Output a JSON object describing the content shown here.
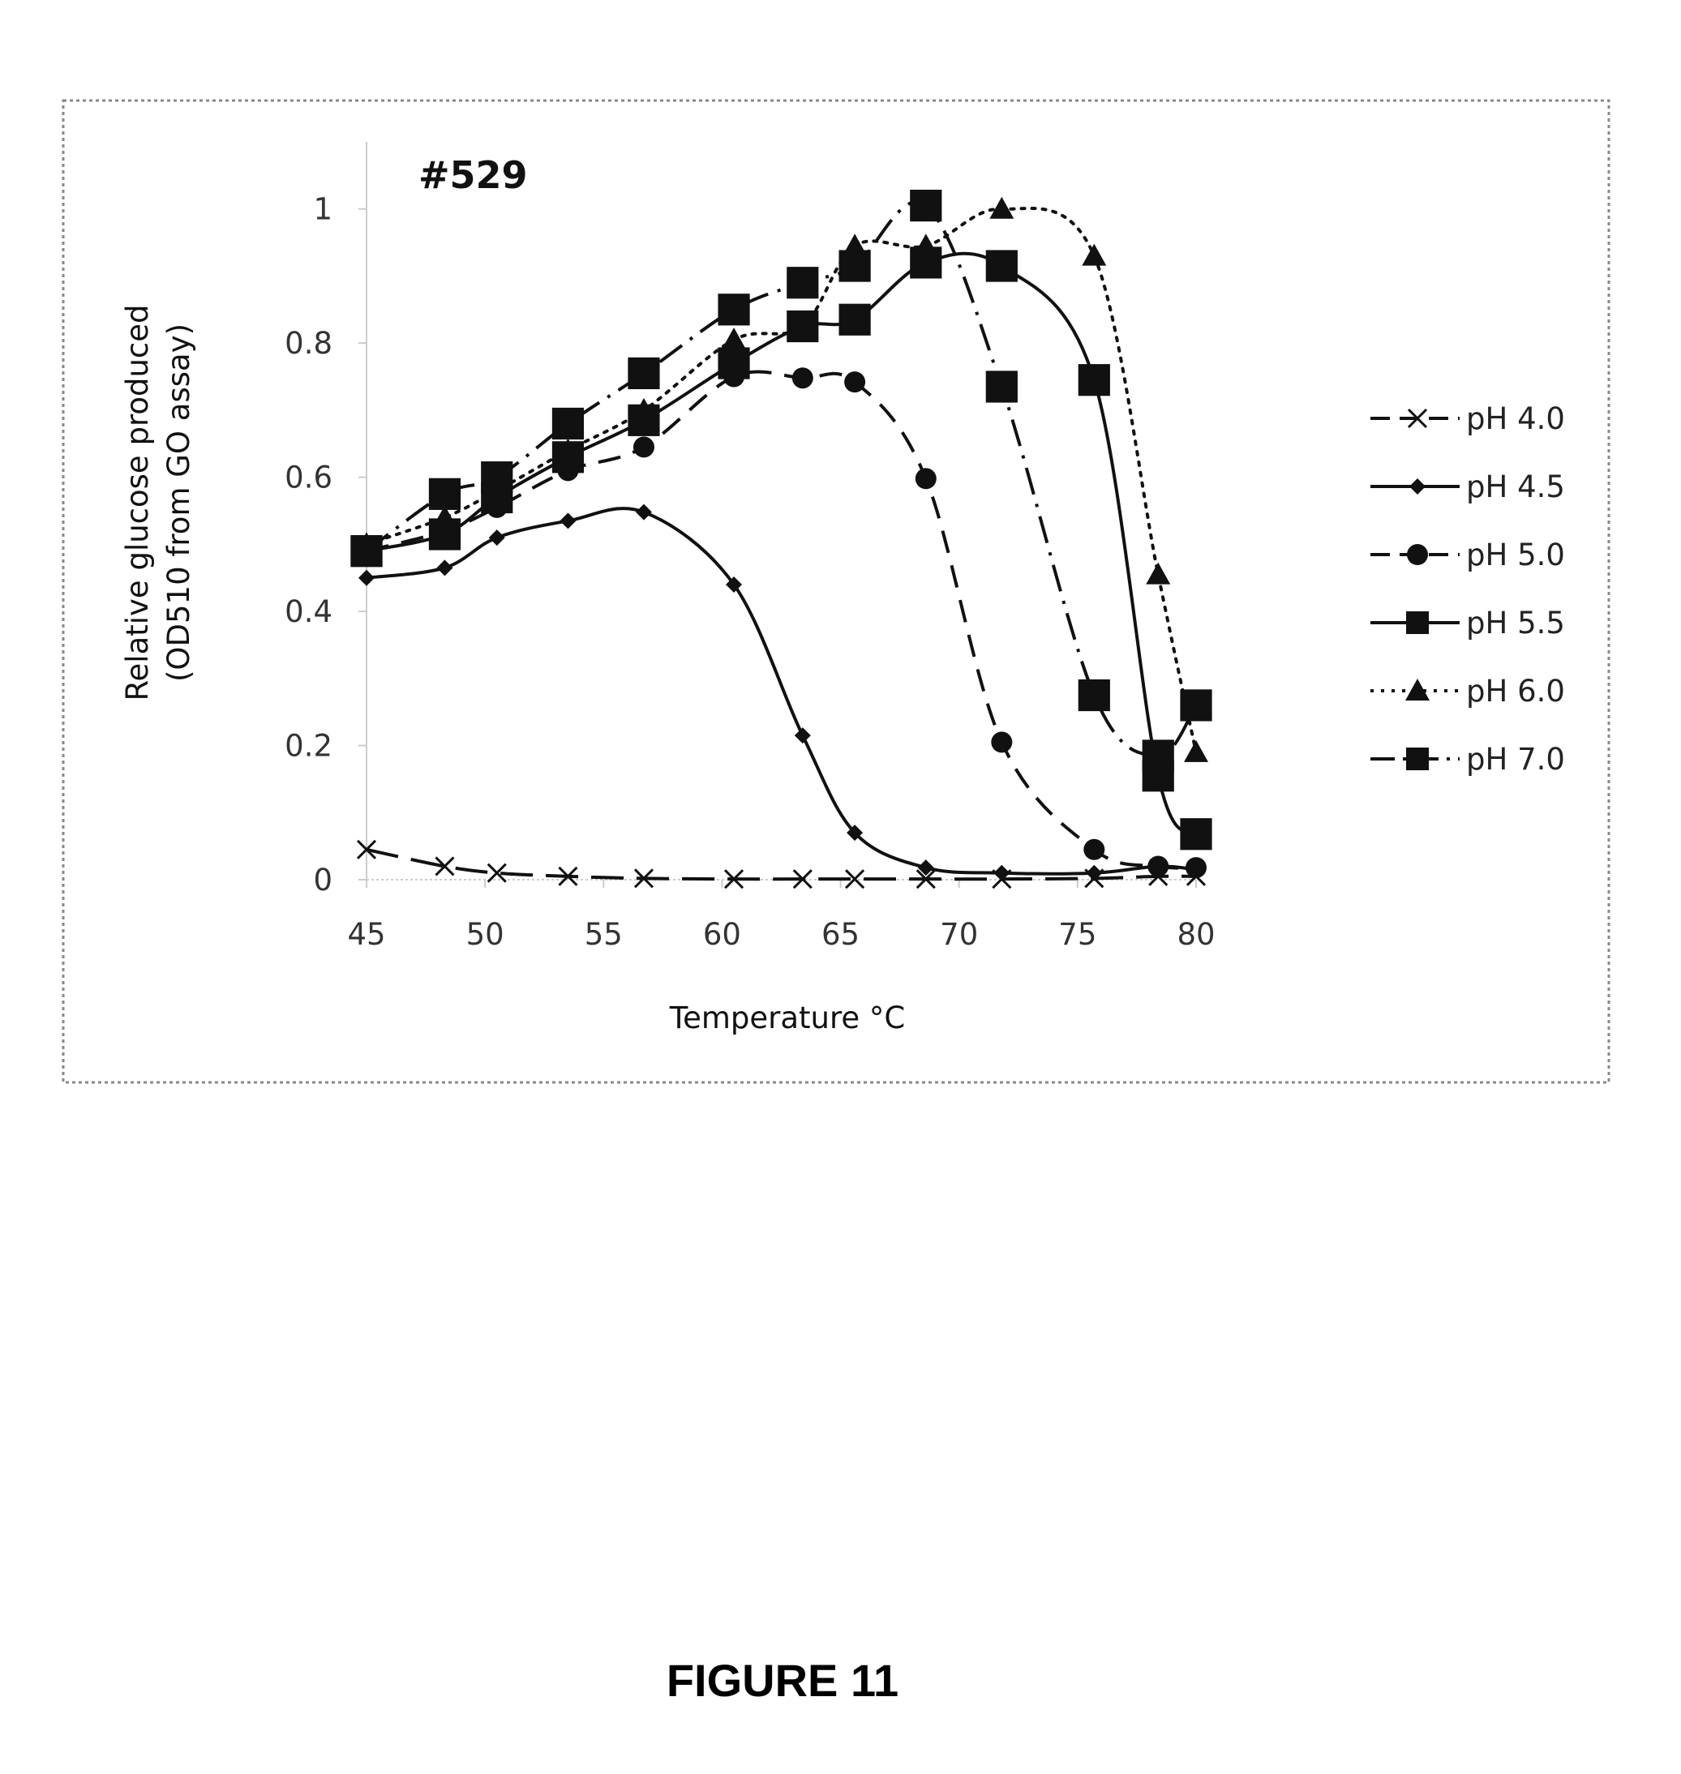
{
  "figure_label": "FIGURE 11",
  "chart_data": {
    "type": "line",
    "title": "#529",
    "xlabel": "Temperature °C",
    "ylabel_line1": "Relative glucose produced",
    "ylabel_line2": "(OD510 from GO assay)",
    "xlim": [
      45,
      80
    ],
    "ylim": [
      0,
      1.1
    ],
    "x_ticks": [
      "45",
      "50",
      "55",
      "60",
      "65",
      "70",
      "75",
      "80"
    ],
    "y_ticks": [
      "0",
      "0.2",
      "0.4",
      "0.6",
      "0.8",
      "1"
    ],
    "grid": false,
    "legend_position": "right",
    "series": [
      {
        "name": "pH 4.0",
        "marker": "x",
        "dash": "dash-long",
        "x": [
          45,
          48.3,
          50.5,
          53.5,
          56.7,
          60.5,
          63.4,
          65.6,
          68.6,
          71.8,
          75.7,
          78.4,
          80
        ],
        "y": [
          0.045,
          0.02,
          0.01,
          0.005,
          0.002,
          0.001,
          0.001,
          0.001,
          0.001,
          0.001,
          0.002,
          0.005,
          0.005
        ]
      },
      {
        "name": "pH 4.5",
        "marker": "diamond",
        "dash": "solid",
        "x": [
          45,
          48.3,
          50.5,
          53.5,
          56.7,
          60.5,
          63.4,
          65.6,
          68.6,
          71.8,
          75.7,
          78.4,
          80
        ],
        "y": [
          0.45,
          0.465,
          0.51,
          0.535,
          0.548,
          0.44,
          0.215,
          0.07,
          0.018,
          0.01,
          0.01,
          0.02,
          0.015
        ]
      },
      {
        "name": "pH 5.0",
        "marker": "circle",
        "dash": "dash",
        "x": [
          45,
          48.3,
          50.5,
          53.5,
          56.7,
          60.5,
          63.4,
          65.6,
          68.6,
          71.8,
          75.7,
          78.4,
          80
        ],
        "y": [
          0.49,
          0.52,
          0.555,
          0.61,
          0.645,
          0.75,
          0.748,
          0.742,
          0.598,
          0.205,
          0.045,
          0.02,
          0.018
        ]
      },
      {
        "name": "pH 5.5",
        "marker": "square",
        "dash": "solid",
        "x": [
          45,
          48.3,
          50.5,
          53.5,
          56.7,
          60.5,
          63.4,
          65.6,
          68.6,
          71.8,
          75.7,
          78.4,
          80
        ],
        "y": [
          0.49,
          0.515,
          0.57,
          0.63,
          0.685,
          0.77,
          0.825,
          0.835,
          0.92,
          0.915,
          0.745,
          0.155,
          0.068
        ]
      },
      {
        "name": "pH 6.0",
        "marker": "triangle",
        "dash": "dot",
        "x": [
          45,
          48.3,
          50.5,
          53.5,
          56.7,
          60.5,
          63.4,
          65.6,
          68.6,
          71.8,
          75.7,
          78.4,
          80
        ],
        "y": [
          0.5,
          0.54,
          0.58,
          0.64,
          0.7,
          0.805,
          0.825,
          0.945,
          0.945,
          1.0,
          0.93,
          0.455,
          0.19
        ]
      },
      {
        "name": "pH 7.0",
        "marker": "square",
        "dash": "dash-dot",
        "x": [
          45,
          48.3,
          50.5,
          53.5,
          56.7,
          60.5,
          63.4,
          65.6,
          68.6,
          71.8,
          75.7,
          78.4,
          80
        ],
        "y": [
          0.49,
          0.575,
          0.6,
          0.68,
          0.755,
          0.85,
          0.89,
          0.915,
          1.005,
          0.735,
          0.275,
          0.185,
          0.26
        ]
      }
    ]
  }
}
